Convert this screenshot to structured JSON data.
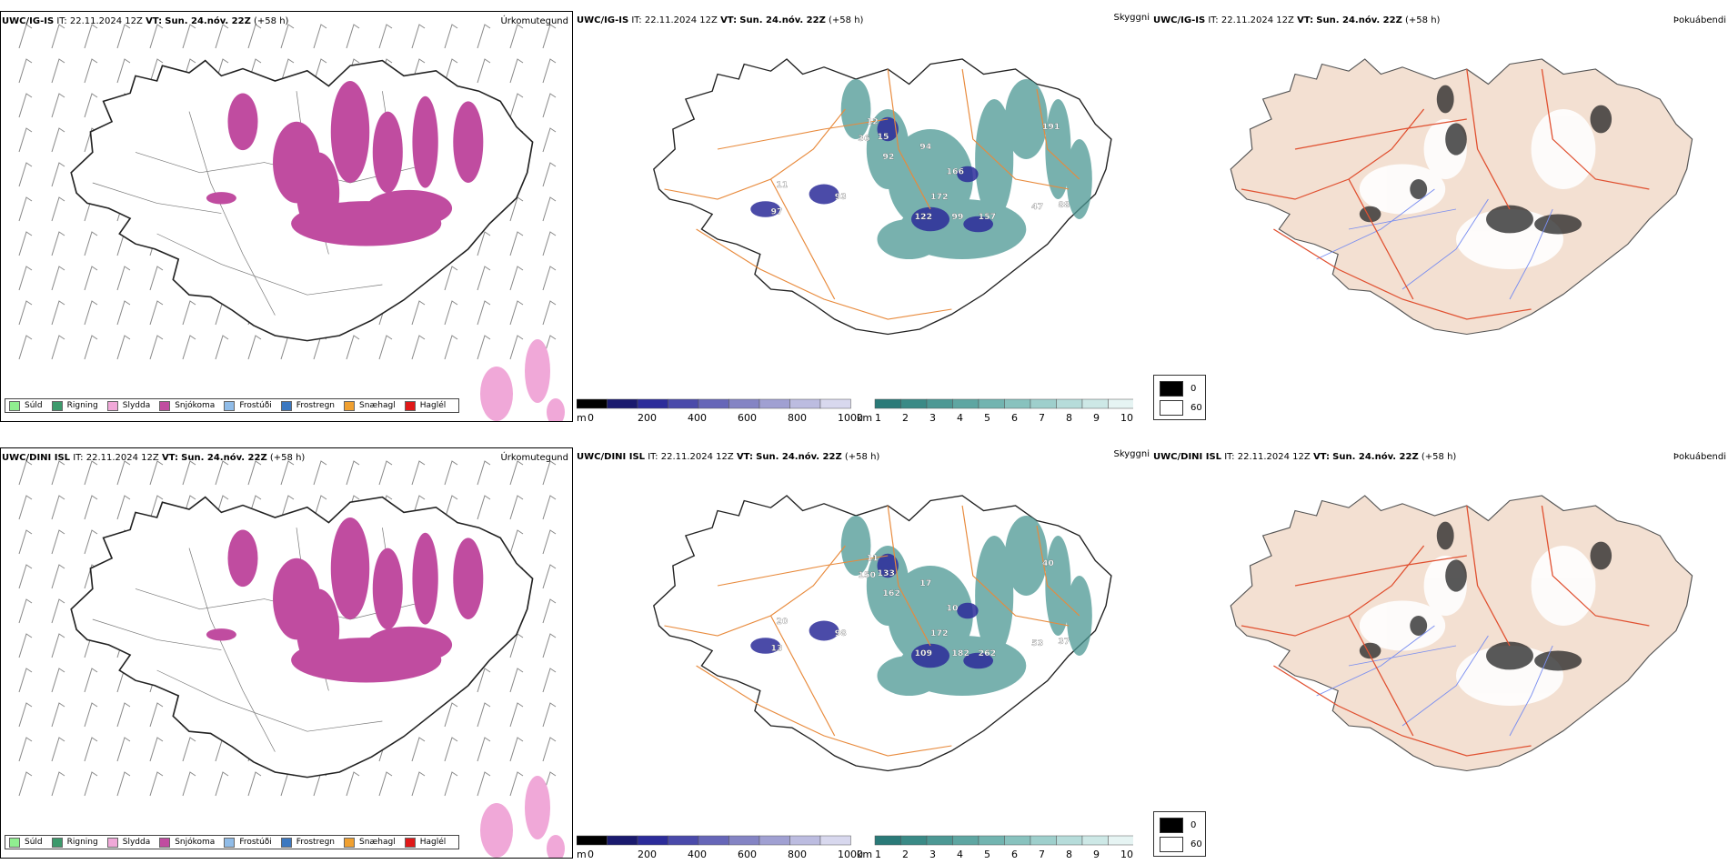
{
  "rows": [
    {
      "model": "UWC/IG-IS",
      "it_label": "IT:",
      "it_value": "22.11.2024 12Z",
      "vt_label": "VT:",
      "vt_value": "Sun. 24.nóv. 22Z",
      "lead": "(+58 h)",
      "cloud_labels": [
        "93",
        "97",
        "11",
        "12",
        "15",
        "36",
        "94",
        "92",
        "166",
        "172",
        "122",
        "99",
        "157",
        "47",
        "88",
        "191"
      ],
      "precip_title": "Úrkomutegund",
      "cloud_title": "Skyggni",
      "fog_title": "Þokuábendi"
    },
    {
      "model": "UWC/DINI ISL",
      "it_label": "IT:",
      "it_value": "22.11.2024 12Z",
      "vt_label": "VT:",
      "vt_value": "Sun. 24.nóv. 22Z",
      "lead": "(+58 h)",
      "cloud_labels": [
        "98",
        "13",
        "20",
        "11",
        "133",
        "150",
        "17",
        "162",
        "10",
        "172",
        "109",
        "182",
        "262",
        "53",
        "37",
        "40"
      ],
      "precip_title": "Úrkomutegund",
      "cloud_title": "Skyggni",
      "fog_title": "Þokuábendi"
    }
  ],
  "precip_legend": [
    {
      "label": "Súld",
      "color": "#90ee90"
    },
    {
      "label": "Rigning",
      "color": "#3c9a6c"
    },
    {
      "label": "Slydda",
      "color": "#f0a8d8"
    },
    {
      "label": "Snjókoma",
      "color": "#c04ca0"
    },
    {
      "label": "Frostúði",
      "color": "#90bce8"
    },
    {
      "label": "Frostregn",
      "color": "#3c78c0"
    },
    {
      "label": "Snæhagl",
      "color": "#f0a030"
    },
    {
      "label": "Haglél",
      "color": "#e01818"
    }
  ],
  "base_colorbar": {
    "unit": "m",
    "ticks": [
      "0",
      "200",
      "400",
      "600",
      "800",
      "1000"
    ],
    "colors": [
      "#000000",
      "#1a1a6e",
      "#2c2c9a",
      "#4a4aaa",
      "#6666b8",
      "#8484c4",
      "#a0a0d2",
      "#bcbce0",
      "#d8d8ee"
    ]
  },
  "vis_colorbar": {
    "unit": "km",
    "ticks": [
      "1",
      "2",
      "3",
      "4",
      "5",
      "6",
      "7",
      "8",
      "9",
      "10"
    ],
    "colors": [
      "#2a7a78",
      "#3a8a86",
      "#4c9894",
      "#5ea6a2",
      "#72b4b0",
      "#88c2be",
      "#9ecfcc",
      "#b6dcda",
      "#cde8e6",
      "#e6f4f3"
    ]
  },
  "fog_legend": [
    {
      "label": "0",
      "color": "#000000"
    },
    {
      "label": "60",
      "color": "#ffffff"
    }
  ],
  "colors": {
    "snow": "#c04ca0",
    "sleet": "#f0a8d8",
    "cloud_teal": "#4c9894",
    "cloud_blue": "#2c2c9a",
    "road": "#e88a3c",
    "fog_land": "#f3e0d2",
    "river": "#7a8ef0",
    "fog_road": "#e05030"
  }
}
